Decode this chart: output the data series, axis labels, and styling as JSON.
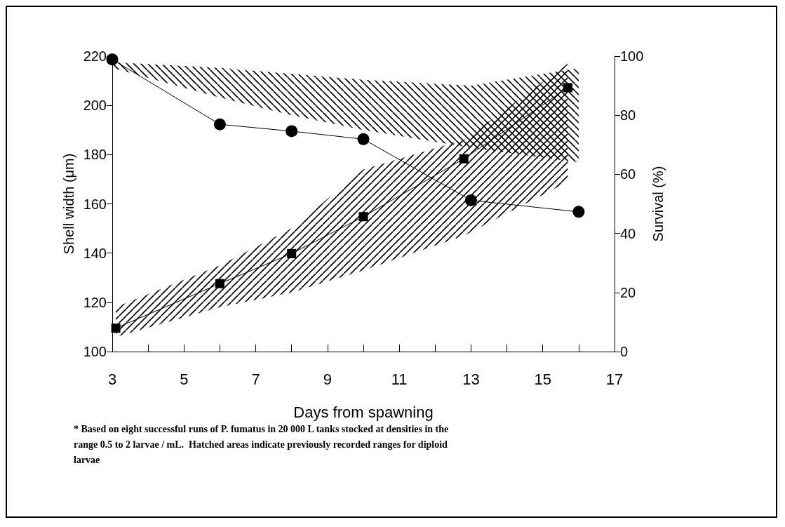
{
  "chart_data": {
    "type": "line",
    "xlabel": "Days from spawning",
    "ylabel": "Shell width (μm)",
    "y2label": "Survival (%)",
    "xlim": [
      3,
      17
    ],
    "xticks": [
      3,
      {
        "value": 4,
        "label": null
      },
      5,
      {
        "value": 6,
        "label": null
      },
      7,
      {
        "value": 8,
        "label": null
      },
      9,
      {
        "value": 10,
        "label": null
      },
      11,
      {
        "value": 12,
        "label": null
      },
      13,
      {
        "value": 14,
        "label": null
      },
      15,
      {
        "value": 16,
        "label": null
      },
      17
    ],
    "ylim": [
      100,
      220
    ],
    "yticks": [
      100,
      120,
      140,
      160,
      180,
      200,
      220
    ],
    "y2lim": [
      0,
      100
    ],
    "y2ticks": [
      0,
      20,
      40,
      60,
      80,
      100
    ],
    "series": [
      {
        "color": "#000000",
        "marker": "square",
        "x": [
          3.1,
          6,
          8,
          10,
          12.8,
          15.7
        ],
        "values": [
          109.5,
          127.6,
          139.8,
          154.8,
          178.3,
          207.2
        ],
        "lower": [
          106,
          118,
          124,
          133,
          147,
          169
        ],
        "upper": [
          118,
          135,
          150,
          174,
          186,
          217
        ]
      },
      {
        "color": "#000000",
        "marker": "circle",
        "axis": "y2",
        "x": [
          3,
          6,
          8,
          10,
          13,
          16
        ],
        "values": [
          98.9,
          76.9,
          74.6,
          71.9,
          51.2,
          47.3
        ],
        "lower": [
          96,
          86,
          80,
          75,
          69,
          64
        ],
        "upper": [
          98,
          96,
          94,
          92,
          90,
          96
        ]
      }
    ],
    "annotations": [
      "* Based on eight successful runs of P. fumatus in 20 000 L tanks stocked at densities in the range 0.5 to 2 larvae / mL.  Hatched areas indicate previously recorded ranges for diploid larvae"
    ]
  }
}
